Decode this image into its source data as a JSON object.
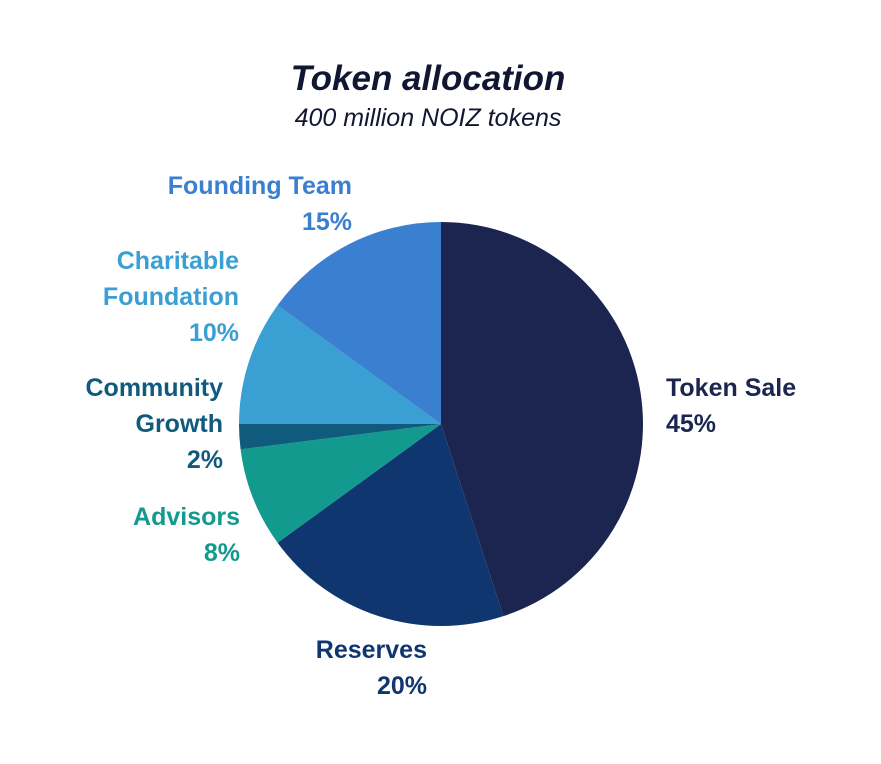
{
  "chart_data": {
    "type": "pie",
    "title": "Token allocation",
    "subtitle": "400 million NOIZ tokens",
    "start_angle_deg": 0,
    "direction": "clockwise",
    "slices": [
      {
        "label": "Token Sale",
        "label_lines": [
          "Token Sale"
        ],
        "value": 45,
        "value_label": "45%",
        "color": "#1b2550",
        "label_color": "#1b2550"
      },
      {
        "label": "Reserves",
        "label_lines": [
          "Reserves"
        ],
        "value": 20,
        "value_label": "20%",
        "color": "#10366f",
        "label_color": "#10366f"
      },
      {
        "label": "Advisors",
        "label_lines": [
          "Advisors"
        ],
        "value": 8,
        "value_label": "8%",
        "color": "#129a8e",
        "label_color": "#129a8e"
      },
      {
        "label": "Community Growth",
        "label_lines": [
          "Community",
          "Growth"
        ],
        "value": 2,
        "value_label": "2%",
        "color": "#0f5a7d",
        "label_color": "#0f5a7d"
      },
      {
        "label": "Charitable Foundation",
        "label_lines": [
          "Charitable",
          "Foundation"
        ],
        "value": 10,
        "value_label": "10%",
        "color": "#3a9fd2",
        "label_color": "#3a9fd2"
      },
      {
        "label": "Founding Team",
        "label_lines": [
          "Founding Team"
        ],
        "value": 15,
        "value_label": "15%",
        "color": "#3a7fd0",
        "label_color": "#3a7fd0"
      }
    ]
  }
}
